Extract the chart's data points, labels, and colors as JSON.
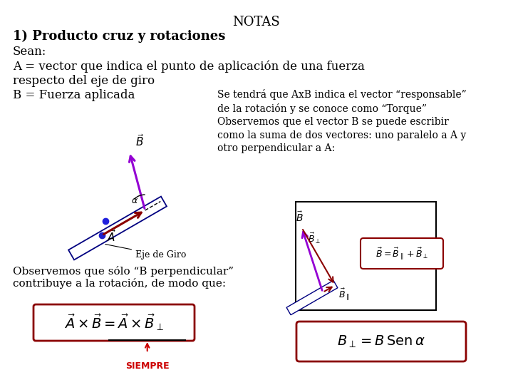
{
  "title": "NOTAS",
  "heading": "1) Producto cruz y rotaciones",
  "sean": "Sean:",
  "line_A": "A = vector que indica el punto de aplicación de una fuerza\nrespecto del eje de giro",
  "line_B": "B = Fuerza aplicada",
  "right_text": "Se tendrá que AxB indica el vector “responsable”\nde la rotación y se conoce como “Torque”\nObservemos que el vector B se puede escribir\ncomo la suma de dos vectores: uno paralelo a A y\notro perpendicular a A:",
  "obs_text": "Observemos que sólo “B perpendicular”\ncontribuye a la rotación, de modo que:",
  "siempre": "SIEMPRE",
  "bg_color": "#ffffff",
  "text_color": "#000000",
  "dark_red": "#8b0000",
  "red_color": "#cc0000",
  "purple": "#9400d3",
  "navy": "#000080"
}
